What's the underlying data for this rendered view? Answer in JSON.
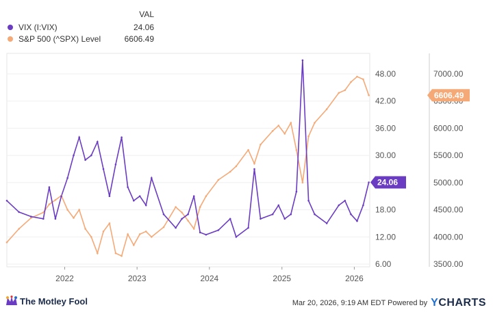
{
  "legend": {
    "header": "VAL",
    "items": [
      {
        "name": "VIX (I:VIX)",
        "value": "24.06",
        "color": "#6a3cc2"
      },
      {
        "name": "S&P 500 (^SPX) Level",
        "value": "6606.49",
        "color": "#f5a977"
      }
    ]
  },
  "chart_data": {
    "type": "line",
    "x_ticks": [
      "2022",
      "2023",
      "2024",
      "2025",
      "2026"
    ],
    "y_left": {
      "ticks": [
        "48.00",
        "42.00",
        "36.00",
        "30.00",
        "24.00",
        "18.00",
        "12.00",
        "6.00"
      ],
      "range": [
        6,
        48
      ]
    },
    "y_right": {
      "ticks": [
        "7000.00",
        "6500.00",
        "6000.00",
        "5500.00",
        "5000.00",
        "4500.00",
        "4000.00",
        "3500.00"
      ],
      "range": [
        3500,
        7000
      ]
    },
    "last_value_labels": {
      "vix": "24.06",
      "spx": "6606.49"
    },
    "x": [
      "2021-03",
      "2021-05",
      "2021-07",
      "2021-09",
      "2021-10",
      "2021-11",
      "2021-12",
      "2022-01",
      "2022-02",
      "2022-03",
      "2022-04",
      "2022-05",
      "2022-06",
      "2022-07",
      "2022-08",
      "2022-09",
      "2022-10",
      "2022-11",
      "2022-12",
      "2023-01",
      "2023-02",
      "2023-03",
      "2023-05",
      "2023-07",
      "2023-08",
      "2023-09",
      "2023-10",
      "2023-11",
      "2023-12",
      "2024-02",
      "2024-04",
      "2024-05",
      "2024-07",
      "2024-08",
      "2024-09",
      "2024-11",
      "2024-12",
      "2025-01",
      "2025-02",
      "2025-03",
      "2025-04",
      "2025-05",
      "2025-06",
      "2025-08",
      "2025-10",
      "2025-11",
      "2025-12",
      "2026-01",
      "2026-02",
      "2026-03"
    ],
    "series": [
      {
        "name": "VIX (I:VIX)",
        "color": "#6a3cc2",
        "values": [
          20,
          17.5,
          16.5,
          16,
          23,
          16,
          21,
          25,
          30,
          34,
          29,
          30,
          33,
          27,
          21,
          28,
          34,
          23,
          20,
          21,
          19,
          25,
          17,
          14,
          16,
          17,
          21,
          13,
          12.5,
          13.5,
          16,
          12,
          14,
          27,
          16,
          17,
          19,
          16,
          17,
          22,
          51,
          20,
          17,
          15,
          19,
          20,
          17,
          15.5,
          19,
          24.06
        ]
      },
      {
        "name": "S&P 500 (^SPX) Level",
        "color": "#f5a977",
        "values": [
          3900,
          4150,
          4350,
          4450,
          4600,
          4680,
          4760,
          4500,
          4350,
          4500,
          4150,
          4000,
          3700,
          4100,
          4250,
          3700,
          3650,
          4050,
          3850,
          4050,
          4100,
          4000,
          4180,
          4550,
          4450,
          4300,
          4150,
          4550,
          4750,
          5050,
          5200,
          5300,
          5600,
          5350,
          5700,
          5950,
          6050,
          5900,
          6100,
          5600,
          5000,
          5850,
          6100,
          6350,
          6650,
          6700,
          6850,
          6950,
          6900,
          6606.49
        ]
      }
    ]
  },
  "footer": {
    "logo_text": "The Motley Fool",
    "timestamp": "Mar 20, 2026, 9:19 AM EDT Powered by",
    "brand_y": "Y",
    "brand_rest": "CHARTS"
  }
}
